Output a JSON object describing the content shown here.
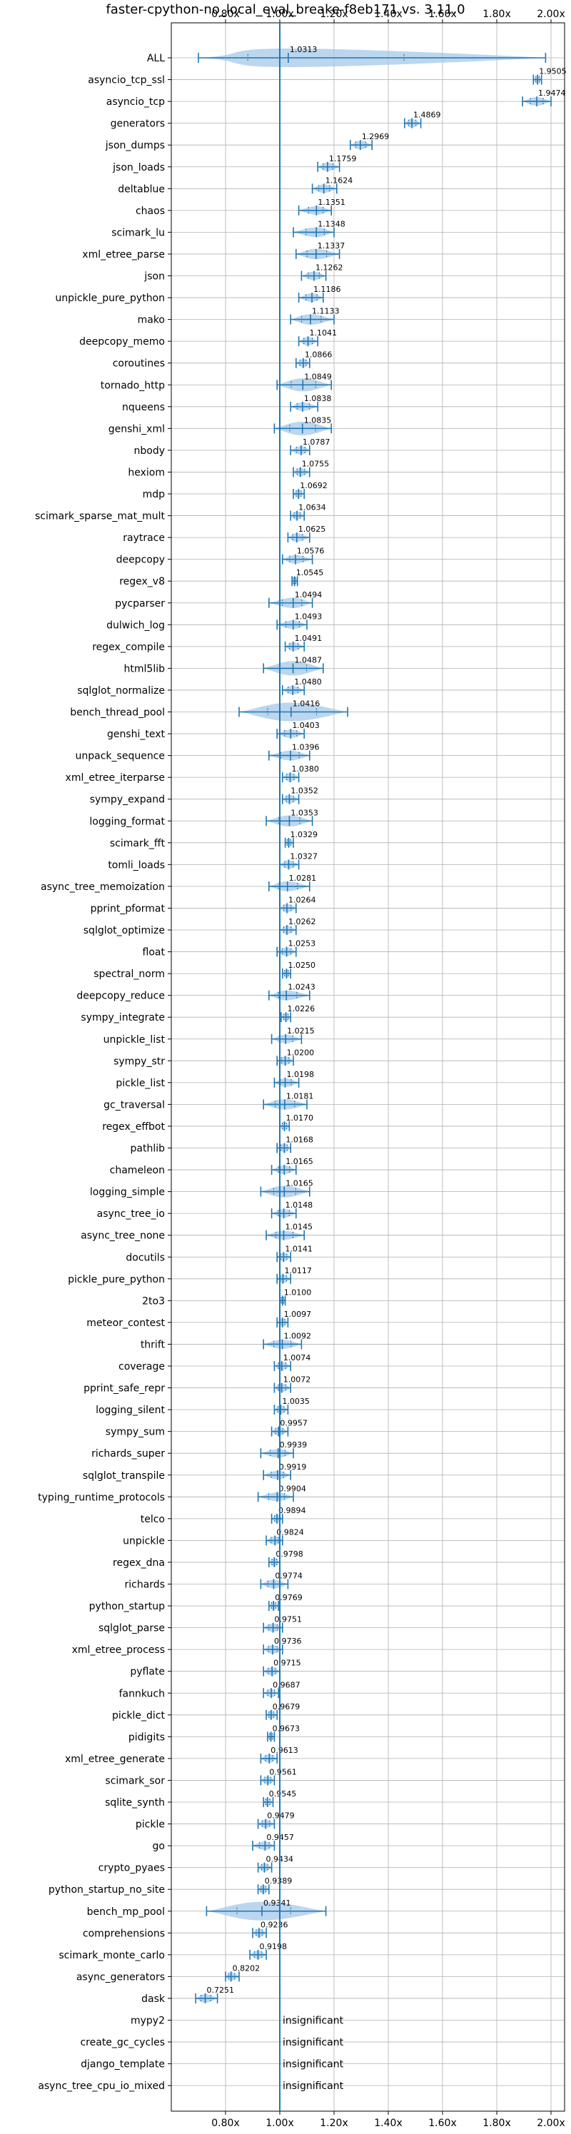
{
  "chart_data": {
    "type": "violin",
    "title": "faster-cpython-no_local_eval_breake-f8eb171 vs. 3.11.0",
    "xlim": [
      0.6,
      2.05
    ],
    "xticks": [
      "0.80x",
      "1.00x",
      "1.20x",
      "1.40x",
      "1.60x",
      "1.80x",
      "2.00x"
    ],
    "xtick_values": [
      0.8,
      1.0,
      1.2,
      1.4,
      1.6,
      1.8,
      2.0
    ],
    "reference_line": 1.0,
    "grid": true,
    "colors": {
      "violin": "#a6c8e8",
      "line": "#1f77b4"
    },
    "insignificant_label": "insignificant",
    "benchmarks": [
      {
        "name": "ALL",
        "value": 1.0313,
        "lo": 0.7,
        "hi": 1.98
      },
      {
        "name": "asyncio_tcp_ssl",
        "value": 1.9505,
        "lo": 1.935,
        "hi": 1.965
      },
      {
        "name": "asyncio_tcp",
        "value": 1.9474,
        "lo": 1.895,
        "hi": 2.0
      },
      {
        "name": "generators",
        "value": 1.4869,
        "lo": 1.46,
        "hi": 1.52
      },
      {
        "name": "json_dumps",
        "value": 1.2969,
        "lo": 1.26,
        "hi": 1.34
      },
      {
        "name": "json_loads",
        "value": 1.1759,
        "lo": 1.14,
        "hi": 1.22
      },
      {
        "name": "deltablue",
        "value": 1.1624,
        "lo": 1.12,
        "hi": 1.21
      },
      {
        "name": "chaos",
        "value": 1.1351,
        "lo": 1.07,
        "hi": 1.19
      },
      {
        "name": "scimark_lu",
        "value": 1.1348,
        "lo": 1.05,
        "hi": 1.2
      },
      {
        "name": "xml_etree_parse",
        "value": 1.1337,
        "lo": 1.06,
        "hi": 1.22
      },
      {
        "name": "json",
        "value": 1.1262,
        "lo": 1.08,
        "hi": 1.17
      },
      {
        "name": "unpickle_pure_python",
        "value": 1.1186,
        "lo": 1.07,
        "hi": 1.16
      },
      {
        "name": "mako",
        "value": 1.1133,
        "lo": 1.04,
        "hi": 1.2
      },
      {
        "name": "deepcopy_memo",
        "value": 1.1041,
        "lo": 1.07,
        "hi": 1.14
      },
      {
        "name": "coroutines",
        "value": 1.0866,
        "lo": 1.06,
        "hi": 1.11
      },
      {
        "name": "tornado_http",
        "value": 1.0849,
        "lo": 0.99,
        "hi": 1.19
      },
      {
        "name": "nqueens",
        "value": 1.0838,
        "lo": 1.04,
        "hi": 1.14
      },
      {
        "name": "genshi_xml",
        "value": 1.0835,
        "lo": 0.98,
        "hi": 1.19
      },
      {
        "name": "nbody",
        "value": 1.0787,
        "lo": 1.04,
        "hi": 1.11
      },
      {
        "name": "hexiom",
        "value": 1.0755,
        "lo": 1.05,
        "hi": 1.11
      },
      {
        "name": "mdp",
        "value": 1.0692,
        "lo": 1.05,
        "hi": 1.09
      },
      {
        "name": "scimark_sparse_mat_mult",
        "value": 1.0634,
        "lo": 1.04,
        "hi": 1.09
      },
      {
        "name": "raytrace",
        "value": 1.0625,
        "lo": 1.03,
        "hi": 1.11
      },
      {
        "name": "deepcopy",
        "value": 1.0576,
        "lo": 1.01,
        "hi": 1.12
      },
      {
        "name": "regex_v8",
        "value": 1.0545,
        "lo": 1.045,
        "hi": 1.065
      },
      {
        "name": "pycparser",
        "value": 1.0494,
        "lo": 0.96,
        "hi": 1.12
      },
      {
        "name": "dulwich_log",
        "value": 1.0493,
        "lo": 0.99,
        "hi": 1.1
      },
      {
        "name": "regex_compile",
        "value": 1.0491,
        "lo": 1.02,
        "hi": 1.09
      },
      {
        "name": "html5lib",
        "value": 1.0487,
        "lo": 0.94,
        "hi": 1.16
      },
      {
        "name": "sqlglot_normalize",
        "value": 1.048,
        "lo": 1.01,
        "hi": 1.09
      },
      {
        "name": "bench_thread_pool",
        "value": 1.0416,
        "lo": 0.85,
        "hi": 1.25
      },
      {
        "name": "genshi_text",
        "value": 1.0403,
        "lo": 0.99,
        "hi": 1.09
      },
      {
        "name": "unpack_sequence",
        "value": 1.0396,
        "lo": 0.96,
        "hi": 1.11
      },
      {
        "name": "xml_etree_iterparse",
        "value": 1.038,
        "lo": 1.01,
        "hi": 1.07
      },
      {
        "name": "sympy_expand",
        "value": 1.0352,
        "lo": 1.01,
        "hi": 1.07
      },
      {
        "name": "logging_format",
        "value": 1.0353,
        "lo": 0.95,
        "hi": 1.12
      },
      {
        "name": "scimark_fft",
        "value": 1.0329,
        "lo": 1.02,
        "hi": 1.05
      },
      {
        "name": "tomli_loads",
        "value": 1.0327,
        "lo": 1.0,
        "hi": 1.07
      },
      {
        "name": "async_tree_memoization",
        "value": 1.0281,
        "lo": 0.96,
        "hi": 1.11
      },
      {
        "name": "pprint_pformat",
        "value": 1.0264,
        "lo": 1.0,
        "hi": 1.06
      },
      {
        "name": "sqlglot_optimize",
        "value": 1.0262,
        "lo": 1.0,
        "hi": 1.06
      },
      {
        "name": "float",
        "value": 1.0253,
        "lo": 0.99,
        "hi": 1.06
      },
      {
        "name": "spectral_norm",
        "value": 1.025,
        "lo": 1.01,
        "hi": 1.04
      },
      {
        "name": "deepcopy_reduce",
        "value": 1.0243,
        "lo": 0.96,
        "hi": 1.11
      },
      {
        "name": "sympy_integrate",
        "value": 1.0226,
        "lo": 1.005,
        "hi": 1.04
      },
      {
        "name": "unpickle_list",
        "value": 1.0215,
        "lo": 0.97,
        "hi": 1.08
      },
      {
        "name": "sympy_str",
        "value": 1.02,
        "lo": 0.99,
        "hi": 1.05
      },
      {
        "name": "pickle_list",
        "value": 1.0198,
        "lo": 0.98,
        "hi": 1.07
      },
      {
        "name": "gc_traversal",
        "value": 1.0181,
        "lo": 0.94,
        "hi": 1.1
      },
      {
        "name": "regex_effbot",
        "value": 1.017,
        "lo": 1.0,
        "hi": 1.035
      },
      {
        "name": "pathlib",
        "value": 1.0168,
        "lo": 0.99,
        "hi": 1.04
      },
      {
        "name": "chameleon",
        "value": 1.0165,
        "lo": 0.97,
        "hi": 1.06
      },
      {
        "name": "logging_simple",
        "value": 1.0165,
        "lo": 0.93,
        "hi": 1.11
      },
      {
        "name": "async_tree_io",
        "value": 1.0148,
        "lo": 0.97,
        "hi": 1.06
      },
      {
        "name": "async_tree_none",
        "value": 1.0145,
        "lo": 0.95,
        "hi": 1.09
      },
      {
        "name": "docutils",
        "value": 1.0141,
        "lo": 0.99,
        "hi": 1.04
      },
      {
        "name": "pickle_pure_python",
        "value": 1.0117,
        "lo": 0.99,
        "hi": 1.04
      },
      {
        "name": "2to3",
        "value": 1.01,
        "lo": 1.0,
        "hi": 1.02
      },
      {
        "name": "meteor_contest",
        "value": 1.0097,
        "lo": 0.99,
        "hi": 1.03
      },
      {
        "name": "thrift",
        "value": 1.0092,
        "lo": 0.94,
        "hi": 1.08
      },
      {
        "name": "coverage",
        "value": 1.0074,
        "lo": 0.98,
        "hi": 1.04
      },
      {
        "name": "pprint_safe_repr",
        "value": 1.0072,
        "lo": 0.98,
        "hi": 1.04
      },
      {
        "name": "logging_silent",
        "value": 1.0035,
        "lo": 0.98,
        "hi": 1.03
      },
      {
        "name": "sympy_sum",
        "value": 0.9957,
        "lo": 0.97,
        "hi": 1.03
      },
      {
        "name": "richards_super",
        "value": 0.9939,
        "lo": 0.93,
        "hi": 1.05
      },
      {
        "name": "sqlglot_transpile",
        "value": 0.9919,
        "lo": 0.94,
        "hi": 1.04
      },
      {
        "name": "typing_runtime_protocols",
        "value": 0.9904,
        "lo": 0.92,
        "hi": 1.05
      },
      {
        "name": "telco",
        "value": 0.9894,
        "lo": 0.97,
        "hi": 1.01
      },
      {
        "name": "unpickle",
        "value": 0.9824,
        "lo": 0.95,
        "hi": 1.01
      },
      {
        "name": "regex_dna",
        "value": 0.9798,
        "lo": 0.96,
        "hi": 1.0
      },
      {
        "name": "richards",
        "value": 0.9774,
        "lo": 0.93,
        "hi": 1.03
      },
      {
        "name": "python_startup",
        "value": 0.9769,
        "lo": 0.96,
        "hi": 0.995
      },
      {
        "name": "sqlglot_parse",
        "value": 0.9751,
        "lo": 0.94,
        "hi": 1.01
      },
      {
        "name": "xml_etree_process",
        "value": 0.9736,
        "lo": 0.94,
        "hi": 1.01
      },
      {
        "name": "pyflate",
        "value": 0.9715,
        "lo": 0.94,
        "hi": 1.0
      },
      {
        "name": "fannkuch",
        "value": 0.9687,
        "lo": 0.94,
        "hi": 0.995
      },
      {
        "name": "pickle_dict",
        "value": 0.9679,
        "lo": 0.95,
        "hi": 0.99
      },
      {
        "name": "pidigits",
        "value": 0.9673,
        "lo": 0.955,
        "hi": 0.98
      },
      {
        "name": "xml_etree_generate",
        "value": 0.9613,
        "lo": 0.93,
        "hi": 0.99
      },
      {
        "name": "scimark_sor",
        "value": 0.9561,
        "lo": 0.93,
        "hi": 0.98
      },
      {
        "name": "sqlite_synth",
        "value": 0.9545,
        "lo": 0.94,
        "hi": 0.975
      },
      {
        "name": "pickle",
        "value": 0.9479,
        "lo": 0.92,
        "hi": 0.98
      },
      {
        "name": "go",
        "value": 0.9457,
        "lo": 0.9,
        "hi": 0.98
      },
      {
        "name": "crypto_pyaes",
        "value": 0.9434,
        "lo": 0.92,
        "hi": 0.97
      },
      {
        "name": "python_startup_no_site",
        "value": 0.9389,
        "lo": 0.92,
        "hi": 0.96
      },
      {
        "name": "bench_mp_pool",
        "value": 0.9341,
        "lo": 0.73,
        "hi": 1.17
      },
      {
        "name": "comprehensions",
        "value": 0.9236,
        "lo": 0.9,
        "hi": 0.95
      },
      {
        "name": "scimark_monte_carlo",
        "value": 0.9198,
        "lo": 0.89,
        "hi": 0.95
      },
      {
        "name": "async_generators",
        "value": 0.8202,
        "lo": 0.8,
        "hi": 0.85
      },
      {
        "name": "dask",
        "value": 0.7251,
        "lo": 0.69,
        "hi": 0.77
      },
      {
        "name": "mypy2",
        "insignificant": true
      },
      {
        "name": "create_gc_cycles",
        "insignificant": true
      },
      {
        "name": "django_template",
        "insignificant": true
      },
      {
        "name": "async_tree_cpu_io_mixed",
        "insignificant": true
      }
    ]
  }
}
